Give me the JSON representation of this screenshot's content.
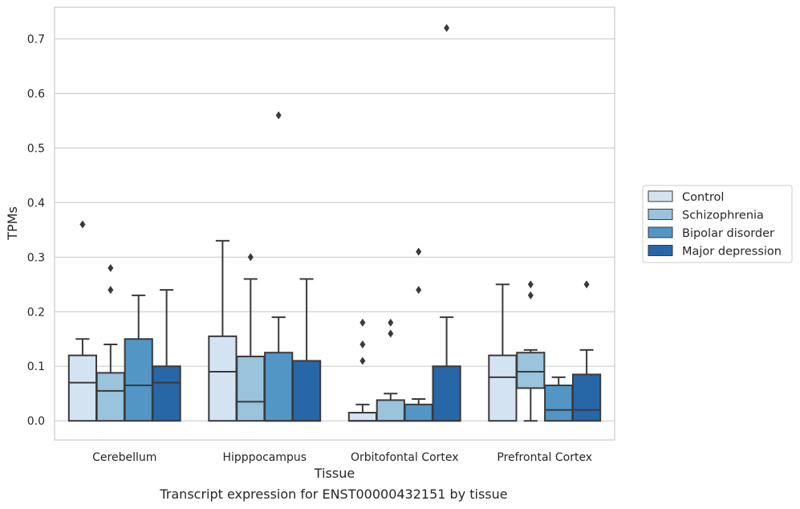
{
  "chart_data": {
    "type": "box",
    "caption": "Transcript expression for ENST00000432151 by tissue",
    "xlabel": "Tissue",
    "ylabel": "TPMs",
    "ylim": [
      -0.035,
      0.758
    ],
    "yticks": [
      "0.0",
      "0.1",
      "0.2",
      "0.3",
      "0.4",
      "0.5",
      "0.6",
      "0.7"
    ],
    "ytick_values": [
      0,
      0.1,
      0.2,
      0.3,
      0.4,
      0.5,
      0.6,
      0.7
    ],
    "grid": true,
    "legend_position": "right",
    "categories": [
      "Cerebellum",
      "Hipppocampus",
      "Orbitofontal Cortex",
      "Prefrontal Cortex"
    ],
    "series": [
      {
        "name": "Control",
        "color": "#d4e3f1",
        "boxes": [
          {
            "q1": 0.0,
            "median": 0.07,
            "q3": 0.12,
            "whislo": 0.0,
            "whishi": 0.15,
            "fliers": [
              0.36
            ]
          },
          {
            "q1": 0.0,
            "median": 0.09,
            "q3": 0.155,
            "whislo": 0.0,
            "whishi": 0.33,
            "fliers": []
          },
          {
            "q1": 0.0,
            "median": 0.0,
            "q3": 0.015,
            "whislo": 0.0,
            "whishi": 0.03,
            "fliers": [
              0.11,
              0.14,
              0.18
            ]
          },
          {
            "q1": 0.0,
            "median": 0.08,
            "q3": 0.12,
            "whislo": 0.0,
            "whishi": 0.25,
            "fliers": []
          }
        ]
      },
      {
        "name": "Schizophrenia",
        "color": "#9ac3dc",
        "boxes": [
          {
            "q1": 0.0,
            "median": 0.055,
            "q3": 0.088,
            "whislo": 0.0,
            "whishi": 0.14,
            "fliers": [
              0.24,
              0.28
            ]
          },
          {
            "q1": 0.0,
            "median": 0.035,
            "q3": 0.118,
            "whislo": 0.0,
            "whishi": 0.26,
            "fliers": [
              0.3
            ]
          },
          {
            "q1": 0.0,
            "median": 0.0,
            "q3": 0.038,
            "whislo": 0.0,
            "whishi": 0.05,
            "fliers": [
              0.16,
              0.18
            ]
          },
          {
            "q1": 0.06,
            "median": 0.09,
            "q3": 0.125,
            "whislo": 0.0,
            "whishi": 0.13,
            "fliers": [
              0.23,
              0.25
            ]
          }
        ]
      },
      {
        "name": "Bipolar disorder",
        "color": "#5296c6",
        "boxes": [
          {
            "q1": 0.0,
            "median": 0.065,
            "q3": 0.15,
            "whislo": 0.0,
            "whishi": 0.23,
            "fliers": []
          },
          {
            "q1": 0.0,
            "median": 0.0,
            "q3": 0.125,
            "whislo": 0.0,
            "whishi": 0.19,
            "fliers": [
              0.56
            ]
          },
          {
            "q1": 0.0,
            "median": 0.0,
            "q3": 0.03,
            "whislo": 0.0,
            "whishi": 0.04,
            "fliers": [
              0.24,
              0.31
            ]
          },
          {
            "q1": 0.0,
            "median": 0.02,
            "q3": 0.065,
            "whislo": 0.0,
            "whishi": 0.08,
            "fliers": []
          }
        ]
      },
      {
        "name": "Major depression",
        "color": "#2767a8",
        "boxes": [
          {
            "q1": 0.0,
            "median": 0.07,
            "q3": 0.1,
            "whislo": 0.0,
            "whishi": 0.24,
            "fliers": []
          },
          {
            "q1": 0.0,
            "median": 0.0,
            "q3": 0.11,
            "whislo": 0.0,
            "whishi": 0.26,
            "fliers": []
          },
          {
            "q1": 0.0,
            "median": 0.0,
            "q3": 0.1,
            "whislo": 0.0,
            "whishi": 0.19,
            "fliers": [
              0.72
            ]
          },
          {
            "q1": 0.0,
            "median": 0.02,
            "q3": 0.085,
            "whislo": 0.0,
            "whishi": 0.13,
            "fliers": [
              0.25
            ]
          }
        ]
      }
    ]
  }
}
